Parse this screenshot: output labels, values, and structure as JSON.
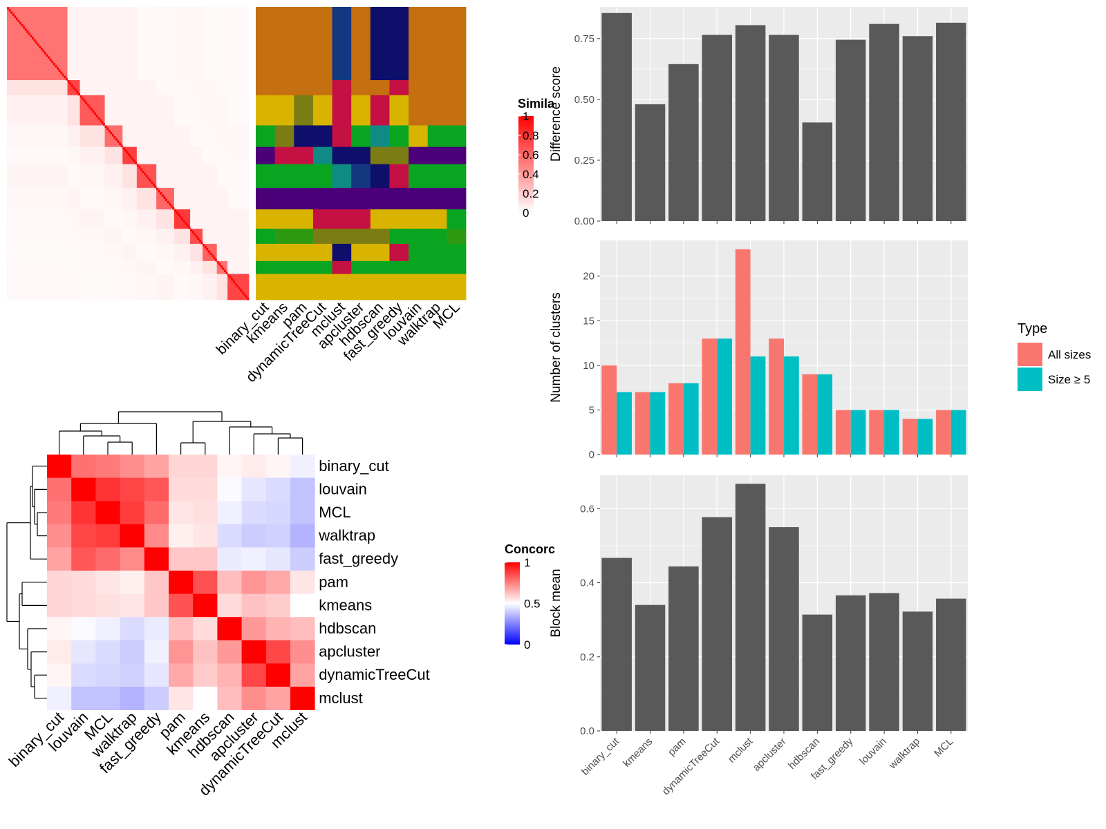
{
  "methods": [
    "binary_cut",
    "kmeans",
    "pam",
    "dynamicTreeCut",
    "mclust",
    "apcluster",
    "hdbscan",
    "fast_greedy",
    "louvain",
    "walktrap",
    "MCL"
  ],
  "panel_top_left": {
    "legend_title": "Simila",
    "legend_ticks": [
      "1",
      "0.8",
      "0.6",
      "0.4",
      "0.2",
      "0"
    ],
    "palette": [
      "#C46F10",
      "#D8B400",
      "#0AA520",
      "#4B0079",
      "#0E0E6B",
      "#C41043",
      "#0F8B83",
      "#7C7C14",
      "#143880",
      "#2E9A11"
    ],
    "block_sizes": [
      34,
      7,
      14,
      10,
      8,
      11,
      10,
      9,
      7,
      8,
      6,
      12
    ],
    "assignments": {
      "binary_cut": [
        0,
        0,
        1,
        2,
        3,
        2,
        3,
        1,
        2,
        1,
        2,
        1
      ],
      "kmeans": [
        0,
        0,
        1,
        7,
        5,
        2,
        3,
        1,
        9,
        1,
        2,
        1
      ],
      "pam": [
        0,
        0,
        7,
        4,
        5,
        2,
        3,
        1,
        9,
        1,
        2,
        1
      ],
      "dynamicTreeCut": [
        0,
        0,
        1,
        4,
        6,
        2,
        3,
        5,
        7,
        1,
        2,
        1
      ],
      "mclust": [
        8,
        5,
        5,
        5,
        4,
        6,
        3,
        5,
        7,
        4,
        5,
        1
      ],
      "apcluster": [
        0,
        0,
        1,
        2,
        4,
        8,
        3,
        5,
        7,
        1,
        2,
        1
      ],
      "hdbscan": [
        4,
        0,
        5,
        6,
        7,
        4,
        3,
        1,
        7,
        1,
        2,
        1
      ],
      "fast_greedy": [
        4,
        5,
        1,
        2,
        7,
        5,
        3,
        1,
        2,
        5,
        2,
        1
      ],
      "louvain": [
        0,
        0,
        0,
        1,
        3,
        2,
        3,
        1,
        2,
        2,
        2,
        1
      ],
      "walktrap": [
        0,
        0,
        0,
        2,
        3,
        2,
        3,
        1,
        2,
        2,
        2,
        1
      ],
      "MCL": [
        0,
        0,
        0,
        2,
        3,
        2,
        3,
        2,
        9,
        2,
        2,
        1
      ]
    }
  },
  "panel_bottom_left": {
    "legend_title": "Concorc",
    "legend_ticks": [
      "1",
      "0.5",
      "0"
    ],
    "row_order": [
      "binary_cut",
      "louvain",
      "MCL",
      "walktrap",
      "fast_greedy",
      "pam",
      "kmeans",
      "hdbscan",
      "apcluster",
      "dynamicTreeCut",
      "mclust"
    ],
    "matrix": [
      [
        1.0,
        0.78,
        0.76,
        0.72,
        0.68,
        0.58,
        0.58,
        0.52,
        0.54,
        0.52,
        0.47
      ],
      [
        0.78,
        1.0,
        0.9,
        0.86,
        0.83,
        0.57,
        0.57,
        0.49,
        0.45,
        0.43,
        0.38
      ],
      [
        0.76,
        0.9,
        1.0,
        0.88,
        0.79,
        0.55,
        0.56,
        0.47,
        0.43,
        0.42,
        0.38
      ],
      [
        0.72,
        0.86,
        0.88,
        1.0,
        0.73,
        0.53,
        0.55,
        0.43,
        0.4,
        0.41,
        0.35
      ],
      [
        0.68,
        0.83,
        0.79,
        0.73,
        1.0,
        0.61,
        0.61,
        0.46,
        0.47,
        0.45,
        0.4
      ],
      [
        0.58,
        0.57,
        0.55,
        0.53,
        0.61,
        1.0,
        0.84,
        0.63,
        0.71,
        0.67,
        0.55
      ],
      [
        0.58,
        0.57,
        0.56,
        0.55,
        0.61,
        0.84,
        1.0,
        0.57,
        0.62,
        0.6,
        0.5
      ],
      [
        0.52,
        0.49,
        0.47,
        0.43,
        0.46,
        0.63,
        0.57,
        1.0,
        0.7,
        0.65,
        0.63
      ],
      [
        0.54,
        0.45,
        0.43,
        0.4,
        0.47,
        0.71,
        0.62,
        0.7,
        1.0,
        0.86,
        0.72
      ],
      [
        0.52,
        0.43,
        0.42,
        0.41,
        0.45,
        0.67,
        0.6,
        0.65,
        0.86,
        1.0,
        0.68
      ],
      [
        0.47,
        0.38,
        0.38,
        0.35,
        0.4,
        0.55,
        0.5,
        0.63,
        0.72,
        0.68,
        1.0
      ]
    ]
  },
  "chart_data": [
    {
      "type": "bar",
      "categories": [
        "binary_cut",
        "kmeans",
        "pam",
        "dynamicTreeCut",
        "mclust",
        "apcluster",
        "hdbscan",
        "fast_greedy",
        "louvain",
        "walktrap",
        "MCL"
      ],
      "values": [
        0.855,
        0.48,
        0.645,
        0.765,
        0.805,
        0.765,
        0.405,
        0.745,
        0.81,
        0.76,
        0.815
      ],
      "xlabel": "",
      "ylabel": "Difference score",
      "ylim": [
        0,
        0.88
      ],
      "yticks": [
        "0.00",
        "0.25",
        "0.50",
        "0.75"
      ],
      "ytick_values": [
        0,
        0.25,
        0.5,
        0.75
      ],
      "bar_color": "#595959",
      "panel_bg": "#EBEBEB",
      "grid": true
    },
    {
      "type": "bar",
      "categories": [
        "binary_cut",
        "kmeans",
        "pam",
        "dynamicTreeCut",
        "mclust",
        "apcluster",
        "hdbscan",
        "fast_greedy",
        "louvain",
        "walktrap",
        "MCL"
      ],
      "series": [
        {
          "name": "All sizes",
          "color": "#F8766D",
          "values": [
            10,
            7,
            8,
            13,
            23,
            13,
            9,
            5,
            5,
            4,
            5
          ]
        },
        {
          "name": "Size ≥ 5",
          "color": "#00BFC4",
          "values": [
            7,
            7,
            8,
            13,
            11,
            11,
            9,
            5,
            5,
            4,
            5
          ]
        }
      ],
      "legend_title": "Type",
      "legend_position": "right",
      "xlabel": "",
      "ylabel": "Number of clusters",
      "ylim": [
        0,
        24
      ],
      "yticks": [
        "0",
        "5",
        "10",
        "15",
        "20"
      ],
      "ytick_values": [
        0,
        5,
        10,
        15,
        20
      ],
      "panel_bg": "#EBEBEB",
      "grid": true
    },
    {
      "type": "bar",
      "categories": [
        "binary_cut",
        "kmeans",
        "pam",
        "dynamicTreeCut",
        "mclust",
        "apcluster",
        "hdbscan",
        "fast_greedy",
        "louvain",
        "walktrap",
        "MCL"
      ],
      "values": [
        0.467,
        0.34,
        0.444,
        0.577,
        0.667,
        0.55,
        0.314,
        0.366,
        0.372,
        0.322,
        0.357
      ],
      "xlabel": "",
      "ylabel": "Block mean",
      "ylim": [
        0,
        0.69
      ],
      "yticks": [
        "0.0",
        "0.2",
        "0.4",
        "0.6"
      ],
      "ytick_values": [
        0,
        0.2,
        0.4,
        0.6
      ],
      "bar_color": "#595959",
      "panel_bg": "#EBEBEB",
      "grid": true
    }
  ]
}
